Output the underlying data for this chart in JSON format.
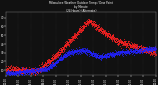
{
  "title_line1": "Milwaukee Weather Outdoor Temp / Dew Point",
  "title_line2": "by Minute",
  "title_line3": "(24 Hours) (Alternate)",
  "bg_color": "#111111",
  "plot_bg_color": "#111111",
  "grid_color": "#555555",
  "temp_color": "#ff2222",
  "dew_color": "#2222ff",
  "title_color": "#ffffff",
  "tick_color": "#ffffff",
  "ylim": [
    4,
    76
  ],
  "xlim": [
    0,
    1440
  ],
  "ylabel_values": [
    10,
    20,
    30,
    40,
    50,
    60,
    70
  ],
  "xlabel_ticks": [
    0,
    120,
    240,
    360,
    480,
    600,
    720,
    840,
    960,
    1080,
    1200,
    1320,
    1440
  ]
}
